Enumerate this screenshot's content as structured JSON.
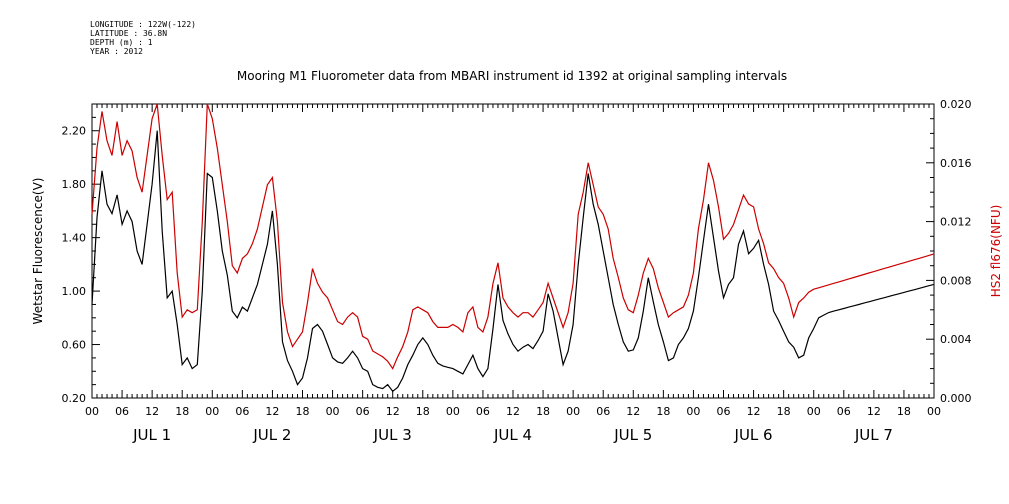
{
  "header": {
    "meta_lines": [
      "LONGITUDE : 122W(-122)",
      "LATITUDE : 36.8N",
      "DEPTH (m) : 1",
      "YEAR : 2012"
    ]
  },
  "chart_data": {
    "type": "line",
    "title": "Mooring M1 Fluorometer data from MBARI instrument id 1392 at original sampling intervals",
    "x_unit": "hours from JUL 1 00:00",
    "xlim": [
      0,
      168
    ],
    "x_tick_labels": [
      "00",
      "06",
      "12",
      "18",
      "00",
      "06",
      "12",
      "18",
      "00",
      "06",
      "12",
      "18",
      "00",
      "06",
      "12",
      "18",
      "00",
      "06",
      "12",
      "18",
      "00",
      "06",
      "12",
      "18",
      "00",
      "06",
      "12",
      "18",
      "00"
    ],
    "day_labels": [
      "JUL 1",
      "JUL 2",
      "JUL 3",
      "JUL 4",
      "JUL 5",
      "JUL 6",
      "JUL 7"
    ],
    "left_axis": {
      "label": "Wetstar Fluorescence(V)",
      "ylim": [
        0.2,
        2.4
      ],
      "ticks": [
        "0.20",
        "0.60",
        "1.00",
        "1.40",
        "1.80",
        "2.20"
      ]
    },
    "right_axis": {
      "label": "HS2 fl676(NFU)",
      "ylim": [
        0.0,
        0.02
      ],
      "ticks": [
        "0.000",
        "0.004",
        "0.008",
        "0.012",
        "0.016",
        "0.020"
      ],
      "color": "#cc0000"
    },
    "series": [
      {
        "name": "Wetstar Fluorescence(V)",
        "axis": "left",
        "color": "#000000",
        "x": [
          0,
          1,
          2,
          3,
          4,
          5,
          6,
          7,
          8,
          9,
          10,
          11,
          12,
          13,
          14,
          15,
          16,
          17,
          18,
          19,
          20,
          21,
          22,
          23,
          24,
          25,
          26,
          27,
          28,
          29,
          30,
          31,
          32,
          33,
          34,
          35,
          36,
          37,
          38,
          39,
          40,
          41,
          42,
          43,
          44,
          45,
          46,
          47,
          48,
          49,
          50,
          51,
          52,
          53,
          54,
          55,
          56,
          57,
          58,
          59,
          60,
          61,
          62,
          63,
          64,
          65,
          66,
          67,
          68,
          69,
          70,
          71,
          72,
          73,
          74,
          75,
          76,
          77,
          78,
          79,
          80,
          81,
          82,
          83,
          84,
          85,
          86,
          87,
          88,
          89,
          90,
          91,
          92,
          93,
          94,
          95,
          96,
          97,
          98,
          99,
          100,
          101,
          102,
          103,
          104,
          105,
          106,
          107,
          108,
          109,
          110,
          111,
          112,
          113,
          114,
          115,
          116,
          117,
          118,
          119,
          120,
          121,
          122,
          123,
          124,
          125,
          126,
          127,
          128,
          129,
          130,
          131,
          132,
          133,
          134,
          135,
          136,
          137,
          138,
          139,
          140,
          141,
          142,
          143,
          144,
          145,
          146,
          147,
          148,
          149,
          150,
          151,
          152,
          153,
          154,
          155,
          156,
          157,
          158,
          159,
          160,
          161,
          162,
          163,
          164,
          165,
          166,
          167,
          168
        ],
        "y": [
          0.9,
          1.55,
          1.9,
          1.65,
          1.58,
          1.72,
          1.5,
          1.6,
          1.52,
          1.3,
          1.2,
          1.5,
          1.8,
          2.2,
          1.45,
          0.95,
          1.0,
          0.75,
          0.45,
          0.5,
          0.42,
          0.45,
          1.0,
          1.88,
          1.85,
          1.6,
          1.3,
          1.12,
          0.85,
          0.8,
          0.88,
          0.85,
          0.95,
          1.05,
          1.2,
          1.35,
          1.6,
          1.2,
          0.62,
          0.48,
          0.4,
          0.3,
          0.35,
          0.5,
          0.72,
          0.75,
          0.7,
          0.6,
          0.5,
          0.47,
          0.46,
          0.5,
          0.55,
          0.5,
          0.42,
          0.4,
          0.3,
          0.28,
          0.27,
          0.3,
          0.25,
          0.28,
          0.35,
          0.45,
          0.52,
          0.6,
          0.65,
          0.6,
          0.52,
          0.46,
          0.44,
          0.43,
          0.42,
          0.4,
          0.38,
          0.45,
          0.52,
          0.42,
          0.36,
          0.42,
          0.72,
          1.05,
          0.78,
          0.68,
          0.6,
          0.55,
          0.58,
          0.6,
          0.57,
          0.63,
          0.7,
          0.98,
          0.85,
          0.65,
          0.45,
          0.55,
          0.75,
          1.2,
          1.55,
          1.88,
          1.65,
          1.5,
          1.3,
          1.1,
          0.9,
          0.75,
          0.62,
          0.55,
          0.56,
          0.65,
          0.85,
          1.1,
          0.92,
          0.75,
          0.62,
          0.48,
          0.5,
          0.6,
          0.65,
          0.72,
          0.85,
          1.1,
          1.38,
          1.65,
          1.4,
          1.15,
          0.95,
          1.05,
          1.1,
          1.35,
          1.45,
          1.28,
          1.32,
          1.38,
          1.2,
          1.05,
          0.85,
          0.78,
          0.7,
          0.62,
          0.58,
          0.5,
          0.52,
          0.65,
          0.72,
          0.8,
          0.82,
          0.84,
          0.85,
          0.86,
          0.87,
          0.88,
          0.89,
          0.9,
          0.91,
          0.92,
          0.93,
          0.94,
          0.95,
          0.96,
          0.97,
          0.98,
          0.99,
          1.0,
          1.01,
          1.02,
          1.03,
          1.04,
          1.05
        ]
      },
      {
        "name": "HS2 fl676(NFU)",
        "axis": "right",
        "color": "#cc0000",
        "x": [
          0,
          1,
          2,
          3,
          4,
          5,
          6,
          7,
          8,
          9,
          10,
          11,
          12,
          13,
          14,
          15,
          16,
          17,
          18,
          19,
          20,
          21,
          22,
          23,
          24,
          25,
          26,
          27,
          28,
          29,
          30,
          31,
          32,
          33,
          34,
          35,
          36,
          37,
          38,
          39,
          40,
          41,
          42,
          43,
          44,
          45,
          46,
          47,
          48,
          49,
          50,
          51,
          52,
          53,
          54,
          55,
          56,
          57,
          58,
          59,
          60,
          61,
          62,
          63,
          64,
          65,
          66,
          67,
          68,
          69,
          70,
          71,
          72,
          73,
          74,
          75,
          76,
          77,
          78,
          79,
          80,
          81,
          82,
          83,
          84,
          85,
          86,
          87,
          88,
          89,
          90,
          91,
          92,
          93,
          94,
          95,
          96,
          97,
          98,
          99,
          100,
          101,
          102,
          103,
          104,
          105,
          106,
          107,
          108,
          109,
          110,
          111,
          112,
          113,
          114,
          115,
          116,
          117,
          118,
          119,
          120,
          121,
          122,
          123,
          124,
          125,
          126,
          127,
          128,
          129,
          130,
          131,
          132,
          133,
          134,
          135,
          136,
          137,
          138,
          139,
          140,
          141,
          142,
          143,
          144,
          145,
          146,
          147,
          148,
          149,
          150,
          151,
          152,
          153,
          154,
          155,
          156,
          157,
          158,
          159,
          160,
          161,
          162,
          163,
          164,
          165,
          166,
          167,
          168
        ],
        "y": [
          0.0125,
          0.017,
          0.0195,
          0.0175,
          0.0165,
          0.0188,
          0.0165,
          0.0175,
          0.0168,
          0.015,
          0.014,
          0.0165,
          0.019,
          0.0205,
          0.0165,
          0.0135,
          0.014,
          0.0085,
          0.0055,
          0.006,
          0.0058,
          0.006,
          0.012,
          0.021,
          0.019,
          0.017,
          0.0145,
          0.012,
          0.009,
          0.0085,
          0.0095,
          0.0098,
          0.0105,
          0.0115,
          0.013,
          0.0145,
          0.015,
          0.012,
          0.0065,
          0.0045,
          0.0035,
          0.004,
          0.0045,
          0.0065,
          0.0088,
          0.0078,
          0.0072,
          0.0068,
          0.006,
          0.0052,
          0.005,
          0.0055,
          0.0058,
          0.0055,
          0.0042,
          0.004,
          0.0032,
          0.003,
          0.0028,
          0.0025,
          0.002,
          0.0028,
          0.0035,
          0.0045,
          0.006,
          0.0062,
          0.006,
          0.0058,
          0.0052,
          0.0048,
          0.0048,
          0.0048,
          0.005,
          0.0048,
          0.0045,
          0.0058,
          0.0062,
          0.0048,
          0.0045,
          0.0055,
          0.0078,
          0.0092,
          0.0068,
          0.0062,
          0.0058,
          0.0055,
          0.0058,
          0.0058,
          0.0055,
          0.006,
          0.0065,
          0.0078,
          0.0068,
          0.0058,
          0.0048,
          0.0058,
          0.0078,
          0.0125,
          0.014,
          0.016,
          0.0145,
          0.013,
          0.0125,
          0.0115,
          0.0095,
          0.0082,
          0.0068,
          0.006,
          0.0058,
          0.007,
          0.0085,
          0.0095,
          0.0088,
          0.0075,
          0.0065,
          0.0055,
          0.0058,
          0.006,
          0.0062,
          0.007,
          0.0085,
          0.0115,
          0.0135,
          0.016,
          0.0148,
          0.013,
          0.0108,
          0.0112,
          0.0118,
          0.0128,
          0.0138,
          0.0132,
          0.013,
          0.0115,
          0.0105,
          0.0092,
          0.0088,
          0.0082,
          0.0078,
          0.0068,
          0.0055,
          0.0065,
          0.0068,
          0.0072,
          0.0074,
          0.0075,
          0.0076,
          0.0077,
          0.0078,
          0.0079,
          0.008,
          0.0081,
          0.0082,
          0.0083,
          0.0084,
          0.0085,
          0.0086,
          0.0087,
          0.0088,
          0.0089,
          0.009,
          0.0091,
          0.0092,
          0.0093,
          0.0094,
          0.0095,
          0.0096,
          0.0097,
          0.0098
        ]
      }
    ],
    "grid": false,
    "legend": "none"
  }
}
